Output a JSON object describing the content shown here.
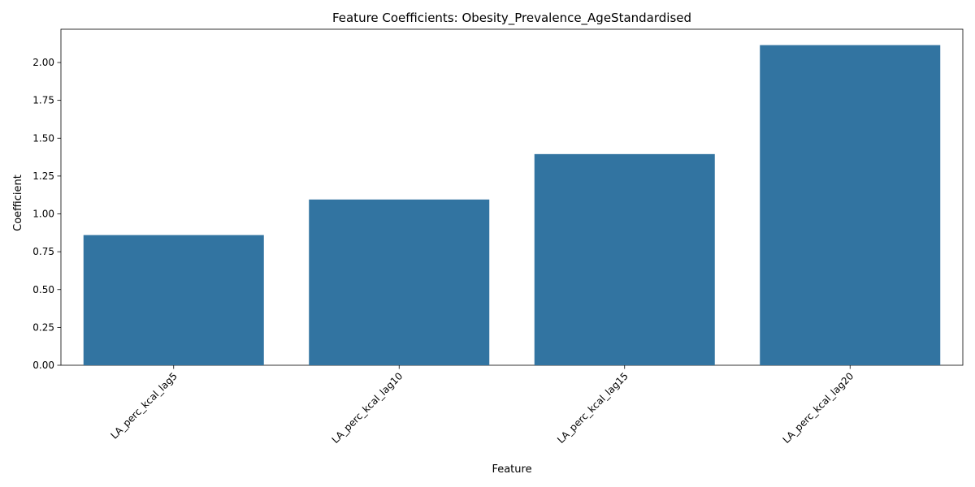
{
  "chart_data": {
    "type": "bar",
    "title": "Feature Coefficients: Obesity_Prevalence_AgeStandardised",
    "xlabel": "Feature",
    "ylabel": "Coefficient",
    "categories": [
      "LA_perc_kcal_lag5",
      "LA_perc_kcal_lag10",
      "LA_perc_kcal_lag15",
      "LA_perc_kcal_lag20"
    ],
    "values": [
      0.86,
      1.095,
      1.395,
      2.115
    ],
    "ylim": [
      0,
      2.22
    ],
    "yticks": [
      0.0,
      0.25,
      0.5,
      0.75,
      1.0,
      1.25,
      1.5,
      1.75,
      2.0
    ],
    "ytick_labels": [
      "0.00",
      "0.25",
      "0.50",
      "0.75",
      "1.00",
      "1.25",
      "1.50",
      "1.75",
      "2.00"
    ],
    "bar_color": "#3274a1",
    "grid": false,
    "legend": null,
    "xtick_rotation": 45
  }
}
